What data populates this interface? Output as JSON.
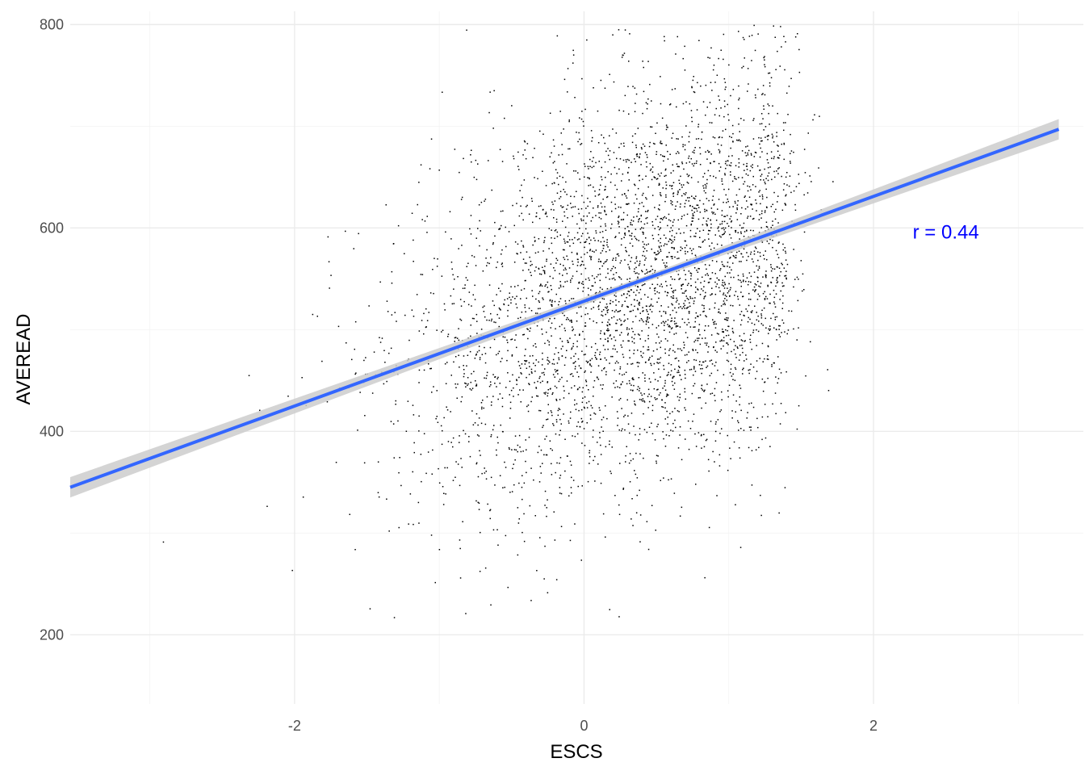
{
  "chart_data": {
    "type": "scatter",
    "xlabel": "ESCS",
    "ylabel": "AVEREAD",
    "xlim": [
      -3.55,
      3.45
    ],
    "ylim": [
      132,
      813
    ],
    "x_ticks": [
      -2,
      0,
      2
    ],
    "x_tick_labels": [
      "-2",
      "0",
      "2"
    ],
    "y_ticks": [
      200,
      400,
      600,
      800
    ],
    "y_tick_labels": [
      "200",
      "400",
      "600",
      "800"
    ],
    "x_minor_ticks": [
      -3,
      -1,
      1,
      3
    ],
    "y_minor_ticks": [
      300,
      500,
      700
    ],
    "grid": true,
    "legend": "none",
    "point_color": "#000000",
    "points_approx_count": 4000,
    "points_center": {
      "x": 0.4,
      "y": 540
    },
    "points_sd": {
      "x": 0.8,
      "y": 98
    },
    "regression_line": {
      "x": [
        -3.55,
        3.28
      ],
      "y": [
        345,
        697
      ],
      "color": "#3366ff",
      "band_color": "#cccccc"
    },
    "annotation": {
      "text": "r = 0.44",
      "x": 2.5,
      "y": 596,
      "color": "#0000ff"
    }
  }
}
